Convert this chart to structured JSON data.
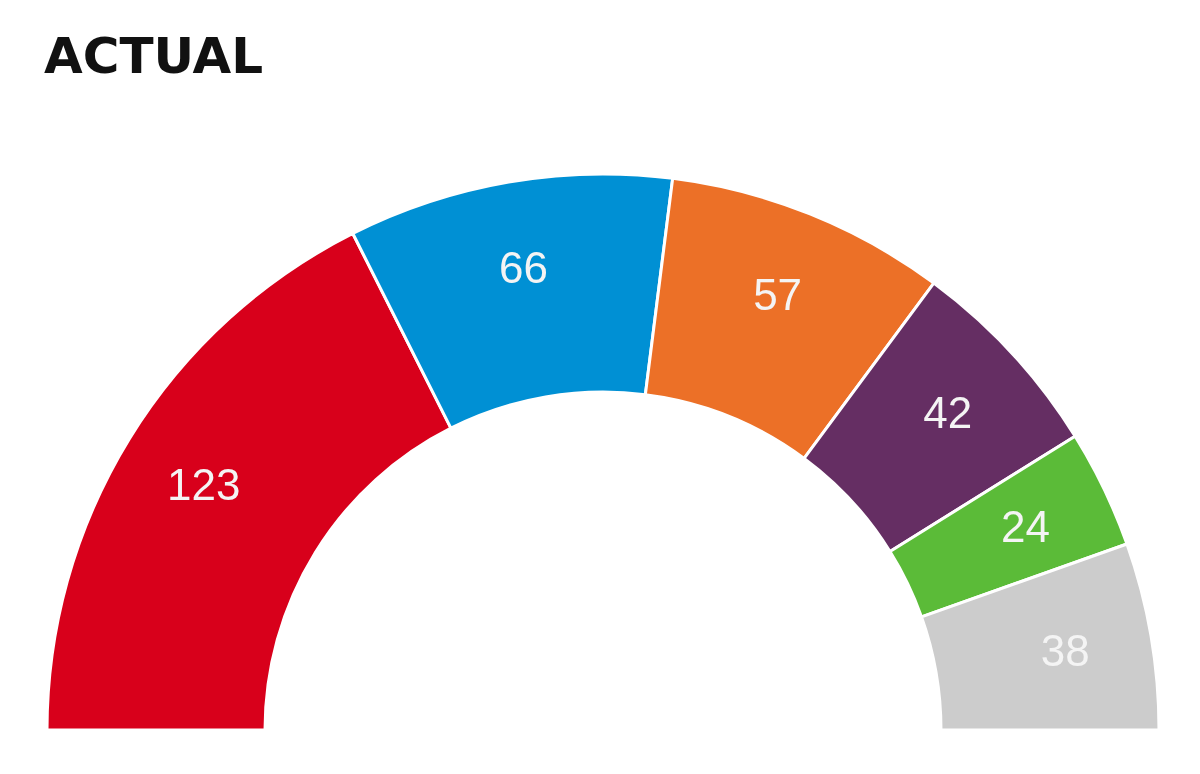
{
  "chart_data": {
    "type": "donut",
    "title": "ACTUAL",
    "categories": [
      null,
      null,
      null,
      null,
      null,
      null
    ],
    "values": [
      123,
      66,
      57,
      42,
      24,
      38
    ],
    "colors": [
      "#d8001b",
      "#0090d4",
      "#ec7027",
      "#652e63",
      "#5bbb38",
      "#cccccc"
    ],
    "data_labels": true
  }
}
